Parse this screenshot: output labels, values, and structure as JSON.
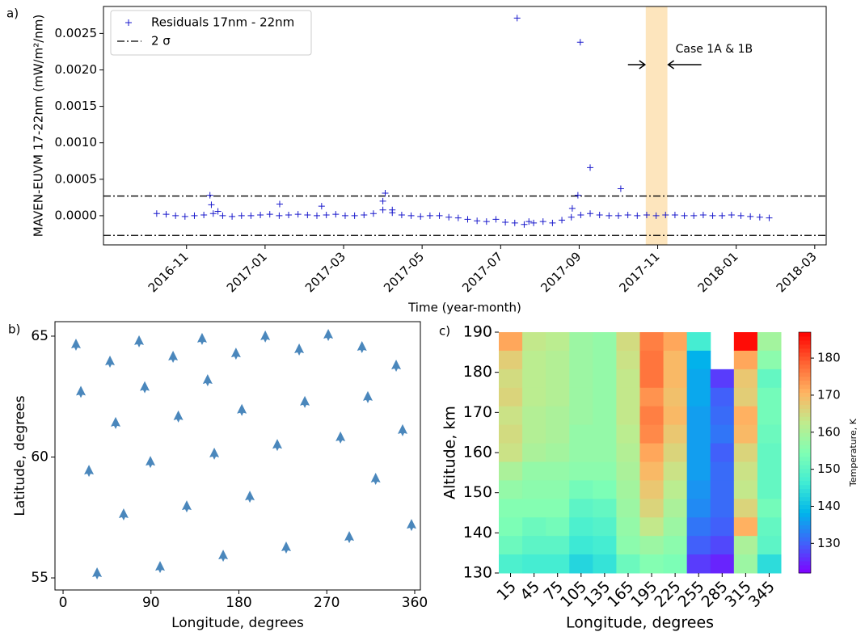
{
  "chart_data": [
    {
      "type": "scatter",
      "panel_label": "a)",
      "xlabel": "Time (year-month)",
      "ylabel": "MAVEN-EUVM 17-22nm (mW/m²/nm)",
      "xlim": [
        2016.657,
        2018.191
      ],
      "ylim": [
        -0.0004,
        0.00287
      ],
      "xticks": [
        {
          "value": 2016.8333,
          "label": "2016-11"
        },
        {
          "value": 2017.0,
          "label": "2017-01"
        },
        {
          "value": 2017.1667,
          "label": "2017-03"
        },
        {
          "value": 2017.3333,
          "label": "2017-05"
        },
        {
          "value": 2017.5,
          "label": "2017-07"
        },
        {
          "value": 2017.6667,
          "label": "2017-09"
        },
        {
          "value": 2017.8333,
          "label": "2017-11"
        },
        {
          "value": 2018.0,
          "label": "2018-01"
        },
        {
          "value": 2018.1667,
          "label": "2018-03"
        }
      ],
      "yticks": [
        {
          "value": 0,
          "label": "0.0000"
        },
        {
          "value": 0.0005,
          "label": "0.0005"
        },
        {
          "value": 0.001,
          "label": "0.0010"
        },
        {
          "value": 0.0015,
          "label": "0.0015"
        },
        {
          "value": 0.002,
          "label": "0.0020"
        },
        {
          "value": 0.0025,
          "label": "0.0025"
        }
      ],
      "legend": "upper left",
      "series": [
        {
          "name": "Residuals 17nm - 22nm",
          "color": "#1a1acc",
          "marker": "+",
          "x": [
            2016.77,
            2016.79,
            2016.81,
            2016.83,
            2016.85,
            2016.87,
            2016.89,
            2016.91,
            2016.93,
            2016.95,
            2016.97,
            2016.99,
            2017.01,
            2017.03,
            2017.05,
            2017.07,
            2017.09,
            2017.11,
            2017.13,
            2017.15,
            2017.17,
            2017.19,
            2017.21,
            2017.23,
            2017.25,
            2017.27,
            2017.29,
            2017.31,
            2017.33,
            2017.35,
            2017.37,
            2017.39,
            2017.41,
            2017.43,
            2017.45,
            2017.47,
            2017.49,
            2017.51,
            2017.53,
            2017.55,
            2017.57,
            2017.59,
            2017.61,
            2017.63,
            2017.65,
            2017.67,
            2017.69,
            2017.71,
            2017.73,
            2017.75,
            2017.77,
            2017.79,
            2017.81,
            2017.83,
            2017.85,
            2017.87,
            2017.89,
            2017.91,
            2017.93,
            2017.95,
            2017.97,
            2017.99,
            2018.01,
            2018.03,
            2018.05,
            2018.07,
            2016.883,
            2016.886,
            2016.9,
            2017.031,
            2017.12,
            2017.25,
            2017.255,
            2017.27,
            2017.535,
            2017.664,
            2017.669,
            2017.69,
            2017.755,
            2017.652,
            2017.56
          ],
          "values": [
            3e-05,
            2e-05,
            0,
            -1e-05,
            0,
            1e-05,
            3e-05,
            0,
            -1e-05,
            0,
            0,
            1e-05,
            2e-05,
            0,
            1e-05,
            2e-05,
            1e-05,
            0,
            1e-05,
            2e-05,
            0,
            0,
            1e-05,
            3e-05,
            8e-05,
            4e-05,
            1e-05,
            0,
            -1e-05,
            0,
            0,
            -2e-05,
            -3e-05,
            -5e-05,
            -7e-05,
            -8e-05,
            -5e-05,
            -9e-05,
            -0.0001,
            -0.00012,
            -0.0001,
            -8e-05,
            -0.0001,
            -6e-05,
            -2e-05,
            1e-05,
            3e-05,
            1e-05,
            0,
            0,
            1e-05,
            0,
            1e-05,
            0,
            1e-05,
            1e-05,
            0,
            0,
            1e-05,
            0,
            0,
            1e-05,
            0,
            -1e-05,
            -2e-05,
            -3e-05,
            0.00028,
            0.00015,
            6e-05,
            0.00016,
            0.00013,
            0.0002,
            0.00031,
            8e-05,
            0.00271,
            0.00028,
            0.00238,
            0.00066,
            0.00037,
            0.0001,
            -8e-05
          ]
        }
      ],
      "hlines": [
        {
          "name": "2 σ",
          "color": "#000000",
          "values": [
            0.00027,
            -0.00027
          ]
        }
      ],
      "span": [
        2017.808,
        2017.854
      ],
      "span_color": "#fde5bd",
      "annotation": "Case 1A & 1B"
    },
    {
      "type": "scatter",
      "panel_label": "b)",
      "xlabel": "Longitude, degrees",
      "ylabel": "Latitude, degrees",
      "xlim": [
        -8.3,
        365.8
      ],
      "ylim": [
        54.5,
        65.6
      ],
      "xticks": [
        0,
        90,
        180,
        270,
        360
      ],
      "yticks": [
        55,
        60,
        65
      ],
      "series": [
        {
          "color": "#2a72b0",
          "marker": "glyph",
          "x": [
            13.2,
            48,
            77.8,
            112.6,
            142.3,
            177,
            207,
            241.7,
            271.5,
            306,
            341,
            18.2,
            83.6,
            148,
            247.5,
            312,
            183,
            118,
            53.8,
            347.6,
            26.5,
            89.4,
            154.8,
            219.3,
            284,
            320,
            62,
            126.6,
            191.2,
            356.7,
            34.8,
            99.3,
            163.9,
            228.4,
            293
          ],
          "values": [
            64.63,
            63.93,
            64.77,
            64.13,
            64.87,
            64.26,
            64.97,
            64.43,
            65.03,
            64.53,
            63.76,
            62.68,
            62.87,
            63.16,
            62.26,
            62.46,
            61.93,
            61.66,
            61.39,
            61.09,
            59.41,
            59.78,
            60.12,
            60.48,
            60.79,
            59.08,
            57.61,
            57.94,
            58.34,
            57.17,
            55.17,
            55.43,
            55.9,
            56.24,
            56.67
          ]
        }
      ]
    },
    {
      "type": "heatmap",
      "panel_label": "c)",
      "xlabel": "Longitude, degrees",
      "ylabel": "Altitude, km",
      "categories": [
        "15",
        "45",
        "75",
        "105",
        "135",
        "165",
        "195",
        "225",
        "255",
        "285",
        "315",
        "345"
      ],
      "ylim": [
        130,
        190
      ],
      "yticks": [
        130,
        140,
        150,
        160,
        170,
        180,
        190
      ],
      "values": [
        [
          172,
          163,
          162,
          158,
          157,
          165,
          176,
          172,
          147,
          null,
          186,
          159
        ],
        [
          167,
          162,
          161,
          158,
          157,
          164,
          177,
          170,
          138,
          null,
          172,
          156
        ],
        [
          165,
          162,
          161,
          158,
          157,
          163,
          177,
          170,
          137,
          127,
          168,
          151
        ],
        [
          166,
          162,
          161,
          158,
          157,
          163,
          174,
          169,
          137,
          130,
          167,
          153
        ],
        [
          164,
          161,
          160,
          158,
          157,
          163,
          176,
          170,
          136,
          131,
          171,
          153
        ],
        [
          165,
          161,
          160,
          157,
          157,
          162,
          175,
          168,
          136,
          132,
          170,
          152
        ],
        [
          164,
          160,
          159,
          157,
          157,
          161,
          172,
          166,
          136,
          130,
          166,
          151
        ],
        [
          160,
          157,
          157,
          156,
          156,
          160,
          170,
          164,
          136,
          131,
          164,
          151
        ],
        [
          157,
          156,
          156,
          153,
          154,
          159,
          168,
          162,
          135,
          131,
          163,
          151
        ],
        [
          155,
          155,
          155,
          150,
          151,
          158,
          166,
          160,
          134,
          131,
          166,
          153
        ],
        [
          154,
          152,
          153,
          148,
          149,
          157,
          163,
          158,
          132,
          130,
          171,
          151
        ],
        [
          152,
          150,
          150,
          146,
          147,
          156,
          158,
          156,
          130,
          128,
          160,
          150
        ],
        [
          148,
          147,
          147,
          143,
          145,
          152,
          155,
          154,
          127,
          125,
          158,
          144
        ]
      ],
      "zlim": [
        122,
        187
      ],
      "colorbar_ticks": [
        130,
        140,
        150,
        160,
        170,
        180
      ],
      "colorbar_label": "Temperature, K",
      "colormap": [
        "#8000ff",
        "#4062fa",
        "#00b5eb",
        "#40ecd4",
        "#80ffb4",
        "#c0eb8d",
        "#ffb462",
        "#ff6232",
        "#ff0000"
      ]
    }
  ]
}
